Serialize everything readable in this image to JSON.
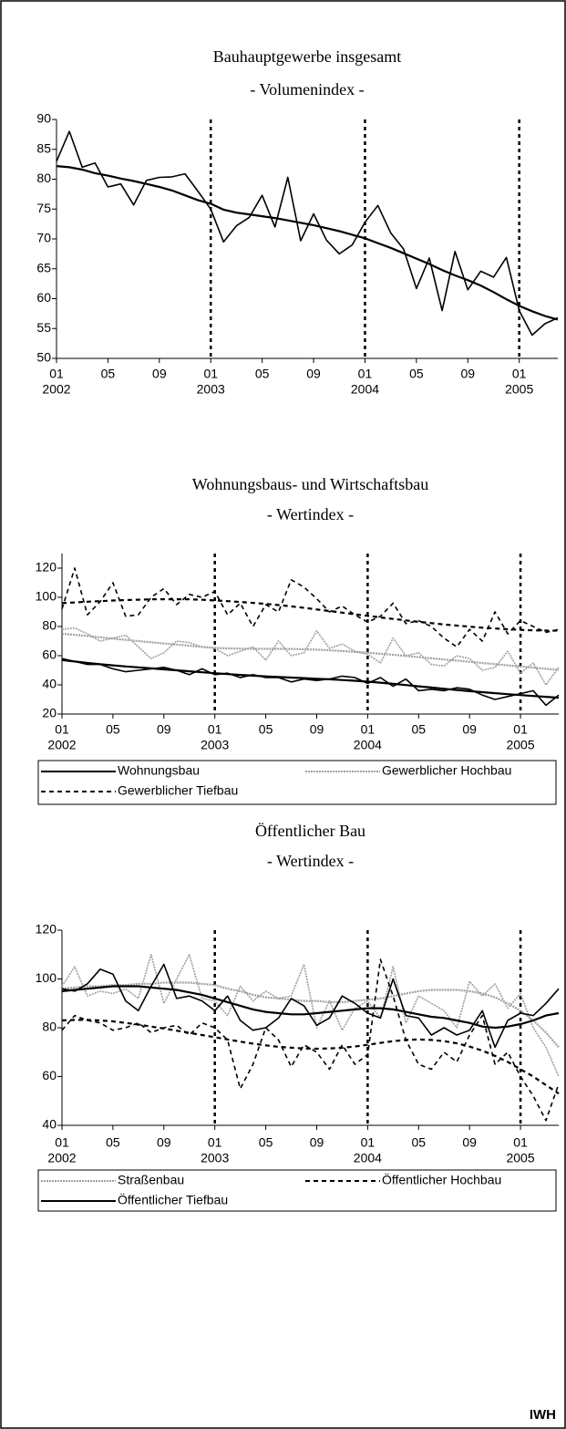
{
  "chart_data": [
    {
      "type": "line",
      "title": "Bauhauptgewerbe insgesamt",
      "subtitle": "- Volumenindex -",
      "categories": [
        "01",
        null,
        null,
        null,
        "05",
        null,
        null,
        null,
        "09",
        null,
        null,
        null,
        "01",
        null,
        null,
        null,
        "05",
        null,
        null,
        null,
        "09",
        null,
        null,
        null,
        "01",
        null,
        null,
        null,
        "05",
        null,
        null,
        null,
        "09",
        null,
        null,
        null,
        "01",
        null,
        null,
        null
      ],
      "year_labels": [
        "2002",
        null,
        null,
        null,
        null,
        null,
        null,
        null,
        null,
        null,
        null,
        null,
        "2003",
        null,
        null,
        null,
        null,
        null,
        null,
        null,
        null,
        null,
        null,
        null,
        "2004",
        null,
        null,
        null,
        null,
        null,
        null,
        null,
        null,
        null,
        null,
        null,
        "2005",
        null,
        null,
        null
      ],
      "year_lines": true,
      "ylim": [
        50,
        90
      ],
      "yticks": [
        50,
        55,
        60,
        65,
        70,
        75,
        80,
        85,
        90
      ],
      "series": [
        {
          "color": "#000000",
          "style": "solid",
          "values": [
            83,
            88,
            82,
            82.7,
            78.7,
            79.2,
            75.7,
            79.8,
            80.3,
            80.4,
            80.9,
            78,
            75,
            69.5,
            72.2,
            73.6,
            77.3,
            72,
            80.3,
            69.7,
            74.2,
            69.8,
            67.5,
            69,
            72.8,
            75.6,
            71,
            68.3,
            61.7,
            66.8,
            58,
            67.9,
            61.5,
            64.6,
            63.6,
            66.9,
            58,
            53.9,
            55.8,
            56.8
          ],
          "trend": [
            82.2,
            82,
            81.6,
            81,
            80.6,
            80.1,
            79.7,
            79.2,
            78.7,
            78.1,
            77.3,
            76.5,
            75.9,
            74.9,
            74.4,
            74.1,
            73.8,
            73.5,
            73.1,
            72.7,
            72.3,
            71.8,
            71.3,
            70.7,
            70.1,
            69.3,
            68.5,
            67.6,
            66.7,
            65.8,
            64.8,
            63.9,
            63.1,
            62.2,
            61.1,
            59.9,
            58.8,
            57.9,
            57.1,
            56.5
          ]
        }
      ]
    },
    {
      "type": "line",
      "title": "Wohnungsbaus- und Wirtschaftsbau",
      "subtitle": "- Wertindex -",
      "categories": [
        "01",
        null,
        null,
        null,
        "05",
        null,
        null,
        null,
        "09",
        null,
        null,
        null,
        "01",
        null,
        null,
        null,
        "05",
        null,
        null,
        null,
        "09",
        null,
        null,
        null,
        "01",
        null,
        null,
        null,
        "05",
        null,
        null,
        null,
        "09",
        null,
        null,
        null,
        "01",
        null,
        null,
        null
      ],
      "year_labels": [
        "2002",
        null,
        null,
        null,
        null,
        null,
        null,
        null,
        null,
        null,
        null,
        null,
        "2003",
        null,
        null,
        null,
        null,
        null,
        null,
        null,
        null,
        null,
        null,
        null,
        "2004",
        null,
        null,
        null,
        null,
        null,
        null,
        null,
        null,
        null,
        null,
        null,
        "2005",
        null,
        null,
        null
      ],
      "year_lines": true,
      "ylim": [
        20,
        130
      ],
      "yticks": [
        20,
        40,
        60,
        80,
        100,
        120
      ],
      "series": [
        {
          "name": "Wohnungsbau",
          "color": "#000000",
          "style": "solid",
          "values": [
            58,
            56,
            54,
            54,
            51,
            49,
            50,
            51,
            52,
            50,
            47,
            51,
            47,
            48,
            45,
            47,
            45,
            45,
            42,
            44,
            43,
            44,
            46,
            45,
            41,
            45,
            39,
            44,
            36,
            37,
            36,
            38,
            37,
            33,
            30,
            32,
            34,
            36,
            26,
            33
          ],
          "trend": [
            57,
            56,
            55,
            54.2,
            53.4,
            52.6,
            52,
            51.3,
            50.6,
            50,
            49.3,
            48.6,
            48,
            47.4,
            46.8,
            46.3,
            45.8,
            45.4,
            45,
            44.6,
            44.2,
            43.8,
            43.3,
            42.8,
            42.2,
            41.5,
            40.7,
            39.9,
            39,
            38.2,
            37.3,
            36.5,
            35.7,
            35,
            34.3,
            33.6,
            33,
            32.4,
            31.8,
            31.2
          ]
        },
        {
          "name": "Gewerblicher Hochbau",
          "color": "#a0a0a0",
          "style": "dotted",
          "values": [
            78,
            79,
            75,
            70,
            72,
            74,
            66,
            58,
            62,
            70,
            69,
            66,
            65,
            60,
            63,
            66,
            57,
            70,
            60,
            62,
            77,
            65,
            68,
            63,
            61,
            55,
            72,
            60,
            62,
            54,
            53,
            60,
            58,
            50,
            52,
            63,
            48,
            55,
            40,
            52
          ],
          "trend": [
            75,
            74.3,
            73.5,
            72.6,
            71.7,
            70.8,
            70,
            69.2,
            68.4,
            67.6,
            66.8,
            66,
            65.4,
            65,
            64.8,
            64.7,
            64.7,
            64.7,
            64.6,
            64.4,
            64.1,
            63.7,
            63.2,
            62.6,
            62,
            61.3,
            60.6,
            59.8,
            59,
            58.2,
            57.4,
            56.6,
            55.8,
            55,
            54.2,
            53.4,
            52.6,
            51.8,
            51,
            50.2
          ]
        },
        {
          "name": "Gewerblicher Tiefbau",
          "color": "#000000",
          "style": "dashed",
          "values": [
            92,
            120,
            88,
            97,
            110,
            87,
            88,
            100,
            106,
            95,
            102,
            100,
            104,
            88,
            96,
            80,
            95,
            90,
            112,
            107,
            99,
            90,
            94,
            88,
            83,
            87,
            96,
            82,
            84,
            80,
            72,
            66,
            78,
            70,
            90,
            75,
            84,
            80,
            76,
            78
          ],
          "trend": [
            96,
            96.5,
            97,
            97.4,
            97.8,
            98.1,
            98.4,
            98.6,
            98.7,
            98.7,
            98.6,
            98.3,
            97.9,
            97.4,
            96.8,
            96.2,
            95.5,
            94.7,
            93.8,
            92.8,
            91.7,
            90.6,
            89.5,
            88.4,
            87.3,
            86.2,
            85.2,
            84.2,
            83.2,
            82.3,
            81.4,
            80.6,
            79.9,
            79.2,
            78.6,
            78.1,
            77.7,
            77.4,
            77.2,
            77.1
          ]
        }
      ]
    },
    {
      "type": "line",
      "title": "Öffentlicher Bau",
      "subtitle": "- Wertindex -",
      "categories": [
        "01",
        null,
        null,
        null,
        "05",
        null,
        null,
        null,
        "09",
        null,
        null,
        null,
        "01",
        null,
        null,
        null,
        "05",
        null,
        null,
        null,
        "09",
        null,
        null,
        null,
        "01",
        null,
        null,
        null,
        "05",
        null,
        null,
        null,
        "09",
        null,
        null,
        null,
        "01",
        null,
        null,
        null
      ],
      "year_labels": [
        "2002",
        null,
        null,
        null,
        null,
        null,
        null,
        null,
        null,
        null,
        null,
        null,
        "2003",
        null,
        null,
        null,
        null,
        null,
        null,
        null,
        null,
        null,
        null,
        null,
        "2004",
        null,
        null,
        null,
        null,
        null,
        null,
        null,
        null,
        null,
        null,
        null,
        "2005",
        null,
        null,
        null
      ],
      "year_lines": true,
      "ylim": [
        40,
        120
      ],
      "yticks": [
        40,
        60,
        80,
        100,
        120
      ],
      "series": [
        {
          "name": "Straßenbau",
          "color": "#a0a0a0",
          "style": "dotted",
          "values": [
            97,
            105,
            93,
            95,
            94,
            96,
            92,
            110,
            90,
            100,
            110,
            92,
            91,
            85,
            97,
            91,
            95,
            92,
            93,
            106,
            80,
            91,
            79,
            88,
            91,
            84,
            105,
            82,
            93,
            90,
            87,
            80,
            99,
            93,
            98,
            88,
            94,
            80,
            72,
            60
          ],
          "trend": [
            96,
            96.5,
            97,
            97,
            97.5,
            97.5,
            98,
            98,
            98.5,
            98.5,
            98.5,
            98,
            97.5,
            96,
            95,
            93.5,
            92.5,
            92,
            91.5,
            91,
            91,
            90.5,
            90.5,
            91,
            91.5,
            92,
            93,
            94,
            95,
            95.5,
            95.5,
            95.5,
            95,
            94,
            92.5,
            90,
            87,
            83,
            78,
            72
          ]
        },
        {
          "name": "Öffentlicher Hochbau",
          "color": "#000000",
          "style": "dashed",
          "values": [
            79,
            85,
            83,
            82,
            79,
            80,
            82,
            78,
            80,
            81,
            77,
            82,
            80,
            75,
            55,
            65,
            80,
            75,
            64,
            73,
            70,
            63,
            73,
            65,
            69,
            108,
            93,
            75,
            65,
            63,
            70,
            66,
            77,
            85,
            65,
            70,
            60,
            52,
            42,
            57
          ],
          "trend": [
            83,
            83.2,
            83.2,
            83,
            82.6,
            82,
            81.3,
            80.5,
            79.7,
            78.8,
            77.9,
            77,
            76.1,
            75.2,
            74.3,
            73.5,
            72.8,
            72.2,
            71.8,
            71.5,
            71.4,
            71.5,
            71.8,
            72.3,
            73,
            73.8,
            74.5,
            75,
            75.2,
            75,
            74.5,
            73.6,
            72.3,
            70.6,
            68.5,
            66,
            63,
            60,
            56.5,
            53
          ]
        },
        {
          "name": "Öffentlicher Tiefbau",
          "color": "#000000",
          "style": "solid",
          "values": [
            96,
            95,
            98,
            104,
            102,
            91,
            87,
            97,
            106,
            92,
            93,
            91,
            87,
            93,
            83,
            79,
            80,
            84,
            92,
            89,
            81,
            84,
            93,
            90,
            86,
            84,
            100,
            85,
            84,
            77,
            80,
            77,
            79,
            87,
            72,
            83,
            86,
            85,
            90,
            96
          ],
          "trend": [
            95,
            95.5,
            96,
            96.5,
            97,
            97,
            97,
            96.5,
            96,
            95.5,
            94.5,
            93.5,
            92,
            90.5,
            89,
            87.5,
            86.5,
            86,
            85.5,
            85.5,
            86,
            86.5,
            87,
            87.5,
            88,
            88,
            87.5,
            86.5,
            85.5,
            84.5,
            84,
            83,
            82,
            80.5,
            80,
            80.5,
            81.5,
            83,
            85,
            86
          ]
        }
      ]
    }
  ],
  "footer": "IWH"
}
